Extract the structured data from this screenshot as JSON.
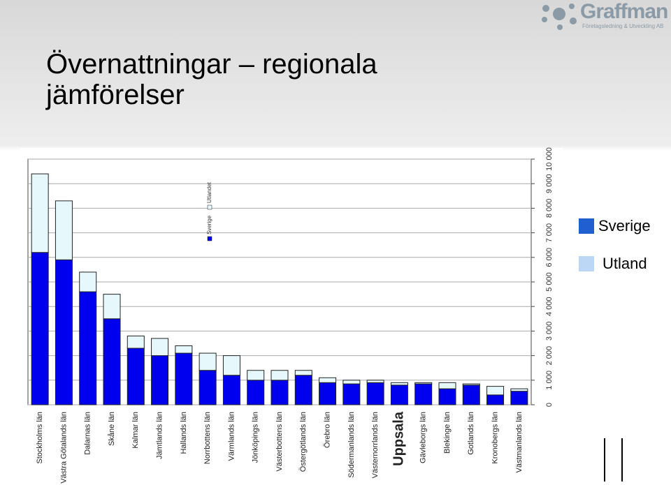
{
  "title": "Övernattningar – regionala jämförelser",
  "logo": {
    "name": "Graffman",
    "tagline": "Företagsledning & Utveckling AB"
  },
  "chart_data": {
    "type": "bar",
    "stacked": true,
    "categories": [
      "Stockholms län",
      "Västra Götalands län",
      "Dalarnas län",
      "Skåne län",
      "Kalmar län",
      "Jämtlands län",
      "Hallands län",
      "Norrbottens län",
      "Värmlands län",
      "Jönköpings län",
      "Västerbottens län",
      "Östergötlands län",
      "Örebro län",
      "Södermanlands län",
      "Västernorrlands län",
      "Uppsala",
      "Gävleborgs län",
      "Blekinge län",
      "Gotlands län",
      "Kronobergs län",
      "Västmanlands län"
    ],
    "series": [
      {
        "name": "Sverige",
        "color": "#0000ee",
        "legend_color": "#1f5fd0",
        "values": [
          6200,
          5900,
          4600,
          3500,
          2300,
          2000,
          2100,
          1400,
          1200,
          1000,
          1000,
          1200,
          900,
          850,
          900,
          800,
          850,
          650,
          800,
          400,
          550
        ]
      },
      {
        "name": "Utland",
        "color": "#e6f8fc",
        "legend_color": "#bcd6f5",
        "values": [
          3200,
          2400,
          800,
          1000,
          500,
          700,
          300,
          700,
          800,
          400,
          400,
          200,
          200,
          150,
          100,
          100,
          50,
          250,
          50,
          350,
          100
        ]
      }
    ],
    "inner_legend": [
      "Sverige",
      "Utlandet"
    ],
    "ylim": [
      0,
      10000
    ],
    "yticks": [
      0,
      {
        "value": 1000,
        "label": "1 000"
      },
      {
        "value": 2000,
        "label": "2 000"
      },
      {
        "value": 3000,
        "label": "3 000"
      },
      {
        "value": 4000,
        "label": "4 000"
      },
      {
        "value": 5000,
        "label": "5 000"
      },
      {
        "value": 6000,
        "label": "6 000"
      },
      {
        "value": 7000,
        "label": "7 000"
      },
      {
        "value": 8000,
        "label": "8 000"
      },
      {
        "value": 9000,
        "label": "9 000"
      },
      {
        "value": 10000,
        "label": "10 000"
      }
    ],
    "grid": true
  }
}
